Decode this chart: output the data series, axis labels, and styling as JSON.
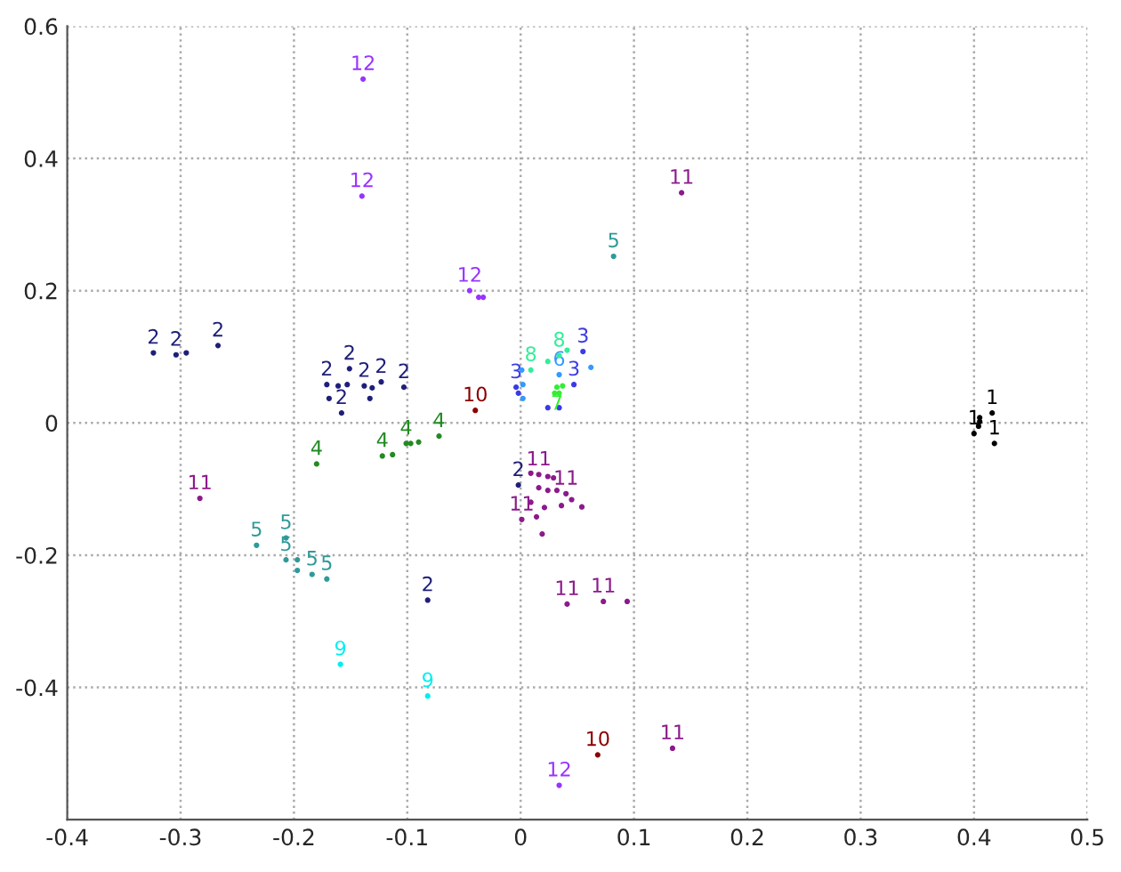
{
  "chart_data": {
    "type": "scatter",
    "xlim": [
      -0.4,
      0.5
    ],
    "ylim": [
      -0.6,
      0.6
    ],
    "xticks": [
      -0.4,
      -0.3,
      -0.2,
      -0.1,
      0,
      0.1,
      0.2,
      0.3,
      0.4,
      0.5
    ],
    "yticks": [
      -0.4,
      -0.2,
      0,
      0.2,
      0.4,
      0.6
    ],
    "grid": true,
    "series": [
      {
        "name": "1",
        "color": "#000000",
        "x": [
          0.4,
          0.405,
          0.405,
          0.416,
          0.404,
          0.418
        ],
        "values": [
          -0.016,
          0.002,
          0.008,
          0.015,
          -0.005,
          -0.031
        ]
      },
      {
        "name": "2",
        "color": "#1f1f7a",
        "x": [
          -0.324,
          -0.304,
          -0.295,
          -0.267,
          -0.151,
          -0.171,
          -0.161,
          -0.153,
          -0.169,
          -0.158,
          -0.138,
          -0.131,
          -0.123,
          -0.133,
          -0.103,
          -0.082,
          -0.002
        ],
        "values": [
          0.106,
          0.103,
          0.106,
          0.117,
          0.082,
          0.058,
          0.056,
          0.058,
          0.037,
          0.015,
          0.056,
          0.053,
          0.062,
          0.037,
          0.054,
          -0.268,
          -0.094
        ]
      },
      {
        "name": "3",
        "color": "#3a3ae6",
        "x": [
          -0.004,
          0.024,
          0.034,
          0.047,
          0.055,
          -0.002
        ],
        "values": [
          0.054,
          0.023,
          0.023,
          0.058,
          0.108,
          0.045
        ]
      },
      {
        "name": "4",
        "color": "#228b22",
        "x": [
          -0.18,
          -0.122,
          -0.113,
          -0.101,
          -0.097,
          -0.09,
          -0.072
        ],
        "values": [
          -0.062,
          -0.05,
          -0.048,
          -0.031,
          -0.031,
          -0.029,
          -0.02
        ]
      },
      {
        "name": "5",
        "color": "#2e9a9a",
        "x": [
          0.082,
          -0.233,
          -0.207,
          -0.207,
          -0.197,
          -0.197,
          -0.184,
          -0.171
        ],
        "values": [
          0.252,
          -0.185,
          -0.174,
          -0.207,
          -0.207,
          -0.223,
          -0.229,
          -0.236
        ]
      },
      {
        "name": "6",
        "color": "#3399ff",
        "x": [
          0.001,
          0.002,
          0.002,
          0.034,
          0.062
        ],
        "values": [
          0.08,
          0.058,
          0.037,
          0.073,
          0.084
        ]
      },
      {
        "name": "7",
        "color": "#33ee33",
        "x": [
          0.032,
          0.037,
          0.03,
          0.034
        ],
        "values": [
          0.054,
          0.056,
          0.045,
          0.045
        ]
      },
      {
        "name": "8",
        "color": "#33ee99",
        "x": [
          0.009,
          0.024,
          0.034,
          0.041
        ],
        "values": [
          0.08,
          0.093,
          0.102,
          0.11
        ]
      },
      {
        "name": "9",
        "color": "#00eeee",
        "x": [
          -0.159,
          -0.082
        ],
        "values": [
          -0.365,
          -0.413
        ]
      },
      {
        "name": "10",
        "color": "#8b0000",
        "x": [
          -0.04,
          0.068
        ],
        "values": [
          0.019,
          -0.502
        ]
      },
      {
        "name": "11",
        "color": "#8b1a8b",
        "x": [
          0.142,
          0.009,
          0.016,
          0.024,
          0.029,
          0.016,
          0.024,
          0.032,
          0.04,
          0.045,
          0.009,
          0.001,
          0.014,
          0.021,
          0.036,
          0.054,
          0.019,
          -0.283,
          0.041,
          0.073,
          0.094,
          0.134
        ],
        "values": [
          0.348,
          -0.076,
          -0.078,
          -0.081,
          -0.083,
          -0.098,
          -0.102,
          -0.102,
          -0.107,
          -0.116,
          -0.12,
          -0.146,
          -0.142,
          -0.128,
          -0.125,
          -0.127,
          -0.168,
          -0.114,
          -0.274,
          -0.27,
          -0.27,
          -0.492
        ]
      },
      {
        "name": "12",
        "color": "#9933ff",
        "x": [
          -0.139,
          -0.14,
          -0.045,
          -0.037,
          -0.033,
          0.034
        ],
        "values": [
          0.52,
          0.343,
          0.2,
          0.19,
          0.19,
          -0.548
        ]
      }
    ]
  }
}
